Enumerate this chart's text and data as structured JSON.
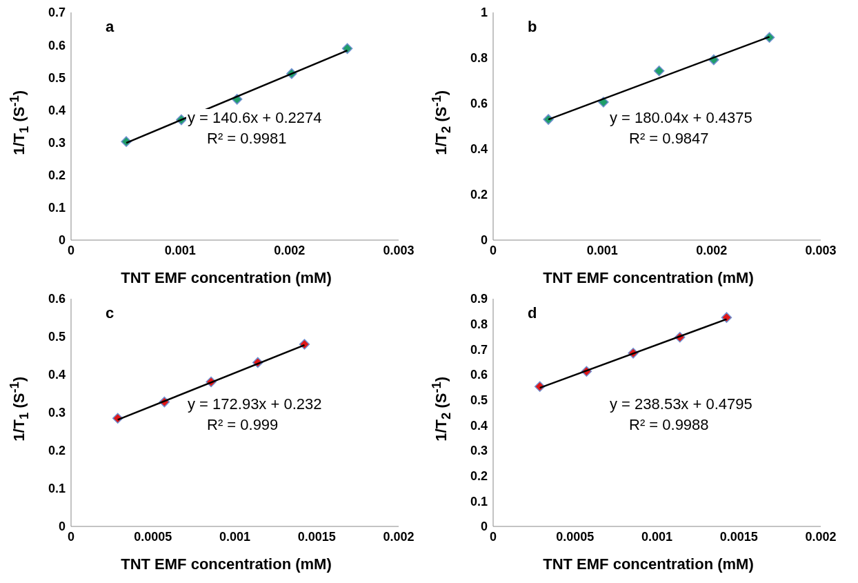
{
  "chart_data": [
    {
      "type": "scatter",
      "xlabel": "TNT EMF concentration (mM)",
      "ylabel": "1/T$_{1}$ (S$^{-1}$)",
      "xlim": [
        0,
        0.003
      ],
      "xticks": [
        0,
        0.001,
        0.002,
        0.003
      ],
      "ylim": [
        0,
        0.7
      ],
      "yticks": [
        0,
        0.1,
        0.2,
        0.3,
        0.4,
        0.5,
        0.6,
        0.7
      ],
      "annotations": [
        "a",
        "y = 140.6x + 0.2274",
        "R² = 0.9981"
      ],
      "series": [
        {
          "color": "#1f9e6a",
          "marker": "diamond",
          "x": [
            0.000506,
            0.00101,
            0.00152,
            0.00202,
            0.00253
          ],
          "values": [
            0.303,
            0.37,
            0.433,
            0.512,
            0.589
          ]
        },
        {
          "type": "line",
          "marker": "none",
          "color": "#000000",
          "x": [
            0.000506,
            0.00253
          ],
          "values": [
            0.299,
            0.583
          ]
        }
      ]
    },
    {
      "type": "scatter",
      "xlabel": "TNT EMF concentration (mM)",
      "ylabel": "1/T$_{2}$ (S$^{-1}$)",
      "xlim": [
        0,
        0.003
      ],
      "xticks": [
        0,
        0.001,
        0.002,
        0.003
      ],
      "ylim": [
        0,
        1
      ],
      "yticks": [
        0,
        0.2,
        0.4,
        0.6,
        0.8,
        1
      ],
      "annotations": [
        "b",
        "y = 180.04x + 0.4375",
        "R² = 0.9847"
      ],
      "series": [
        {
          "color": "#1f9e6a",
          "marker": "diamond",
          "x": [
            0.000506,
            0.00101,
            0.00152,
            0.00202,
            0.00253
          ],
          "values": [
            0.53,
            0.606,
            0.743,
            0.792,
            0.89
          ]
        },
        {
          "type": "line",
          "marker": "none",
          "color": "#000000",
          "x": [
            0.000506,
            0.00253
          ],
          "values": [
            0.53,
            0.893
          ]
        }
      ]
    },
    {
      "type": "scatter",
      "xlabel": "TNT EMF concentration (mM)",
      "ylabel": "1/T$_{1}$ (S$^{-1}$)",
      "xlim": [
        0,
        0.002
      ],
      "xticks": [
        0,
        0.0005,
        0.001,
        0.0015,
        0.002
      ],
      "ylim": [
        0,
        0.6
      ],
      "yticks": [
        0,
        0.1,
        0.2,
        0.3,
        0.4,
        0.5,
        0.6
      ],
      "annotations": [
        "c",
        "y = 172.93x + 0.232",
        "R² = 0.999"
      ],
      "series": [
        {
          "color": "#e01818",
          "marker": "diamond",
          "x": [
            0.000285,
            0.00057,
            0.000855,
            0.00114,
            0.001425
          ],
          "values": [
            0.285,
            0.328,
            0.381,
            0.432,
            0.48
          ]
        },
        {
          "type": "line",
          "marker": "none",
          "color": "#000000",
          "x": [
            0.000285,
            0.001425
          ],
          "values": [
            0.281,
            0.478
          ]
        }
      ]
    },
    {
      "type": "scatter",
      "xlabel": "TNT EMF concentration (mM)",
      "ylabel": "1/T$_{2}$ (S$^{-1}$)",
      "xlim": [
        0,
        0.002
      ],
      "xticks": [
        0,
        0.0005,
        0.001,
        0.0015,
        0.002
      ],
      "ylim": [
        0,
        0.9
      ],
      "yticks": [
        0,
        0.1,
        0.2,
        0.3,
        0.4,
        0.5,
        0.6,
        0.7,
        0.8,
        0.9
      ],
      "annotations": [
        "d",
        "y = 238.53x + 0.4795",
        "R² = 0.9988"
      ],
      "series": [
        {
          "color": "#e01818",
          "marker": "diamond",
          "x": [
            0.000285,
            0.00057,
            0.000855,
            0.00114,
            0.001425
          ],
          "values": [
            0.553,
            0.613,
            0.685,
            0.748,
            0.826
          ]
        },
        {
          "type": "line",
          "marker": "none",
          "color": "#000000",
          "x": [
            0.000285,
            0.001425
          ],
          "values": [
            0.548,
            0.819
          ]
        }
      ]
    }
  ]
}
